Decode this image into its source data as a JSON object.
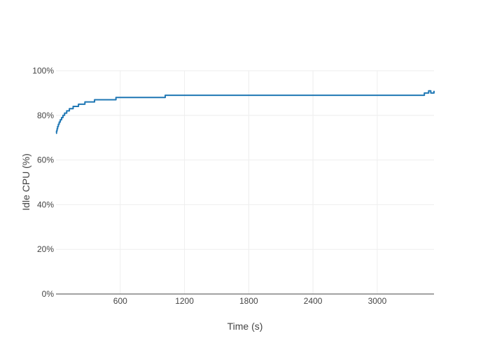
{
  "chart_data": {
    "type": "line",
    "line_shape": "step",
    "title": "",
    "xlabel": "Time (s)",
    "ylabel": "Idle CPU (%)",
    "xlim": [
      0,
      3530
    ],
    "ylim": [
      0,
      100
    ],
    "x_ticks": [
      600,
      1200,
      1800,
      2400,
      3000
    ],
    "x_tick_labels": [
      "600",
      "1200",
      "1800",
      "2400",
      "3000"
    ],
    "y_ticks": [
      0,
      20,
      40,
      60,
      80,
      100
    ],
    "y_tick_labels": [
      "0%",
      "20%",
      "40%",
      "60%",
      "80%",
      "100%"
    ],
    "grid": true,
    "legend": "none",
    "series": [
      {
        "color": "#1f77b4",
        "x": [
          0,
          5,
          10,
          15,
          22,
          30,
          40,
          52,
          65,
          80,
          100,
          125,
          160,
          210,
          270,
          360,
          560,
          1020,
          3440,
          3480,
          3500,
          3530
        ],
        "y": [
          72,
          73,
          74,
          75,
          76,
          77,
          78,
          79,
          80,
          81,
          82,
          83,
          84,
          85,
          86,
          87,
          88,
          89,
          90,
          91,
          90,
          91
        ]
      }
    ]
  }
}
